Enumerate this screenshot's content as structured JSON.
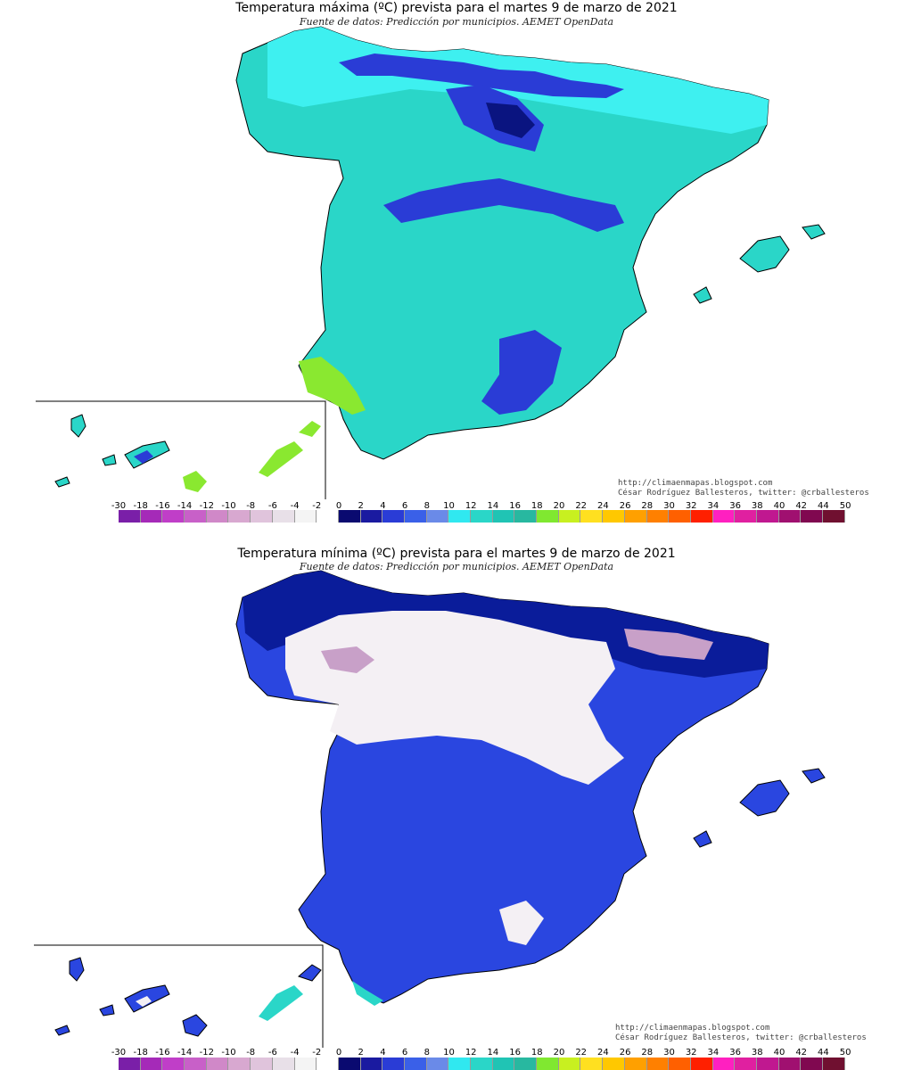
{
  "maps": [
    {
      "id": "max",
      "title": "Temperatura máxima (ºC) prevista para el martes 9 de marzo de 2021",
      "subtitle": "Fuente de datos: Predicción por municipios. AEMET OpenData",
      "credit_url": "http://climaenmapas.blogspot.com",
      "credit_author": "César Rodríguez Ballesteros, twitter: @crballesteros",
      "fill_colors": {
        "base": "#2ad6c8",
        "north": "#3ef0f0",
        "cold": "#2a3cd6",
        "coldest": "#0a1480",
        "warm": "#8ae830"
      }
    },
    {
      "id": "min",
      "title": "Temperatura mínima (ºC) prevista para el martes 9 de marzo de 2021",
      "subtitle": "Fuente de datos: Predicción por municipios. AEMET OpenData",
      "credit_url": "http://climaenmapas.blogspot.com",
      "credit_author": "César Rodríguez Ballesteros, twitter: @crballesteros",
      "fill_colors": {
        "base": "#2a46e0",
        "north": "#0a1c9a",
        "cold": "#f4f0f4",
        "coldest": "#c8a0c8",
        "warm": "#2ad6c8"
      }
    }
  ],
  "scale": {
    "labels": [
      "-30",
      "-18",
      "-16",
      "-14",
      "-12",
      "-10",
      "-8",
      "-6",
      "-4",
      "-2",
      "0",
      "2",
      "4",
      "6",
      "8",
      "10",
      "12",
      "14",
      "16",
      "18",
      "20",
      "22",
      "24",
      "26",
      "28",
      "30",
      "32",
      "34",
      "36",
      "38",
      "40",
      "42",
      "44",
      "50"
    ],
    "colors": [
      "#7a1fa8",
      "#a52ab8",
      "#c03ec8",
      "#c860c8",
      "#d088c8",
      "#d8a8d0",
      "#e0c4dc",
      "#e8e0e8",
      "#f4f4f4",
      "#ffffff",
      "#0a0a70",
      "#1a1aa0",
      "#2a3cd6",
      "#3a60e8",
      "#6a8ae8",
      "#30e8f0",
      "#2ad6c8",
      "#20c4b4",
      "#28b8a0",
      "#80e830",
      "#c8f020",
      "#ffe020",
      "#ffc800",
      "#ffa000",
      "#ff8000",
      "#ff6000",
      "#ff2000",
      "#ff20c0",
      "#e020a0",
      "#c01890",
      "#a01070",
      "#800850",
      "#701030"
    ]
  }
}
